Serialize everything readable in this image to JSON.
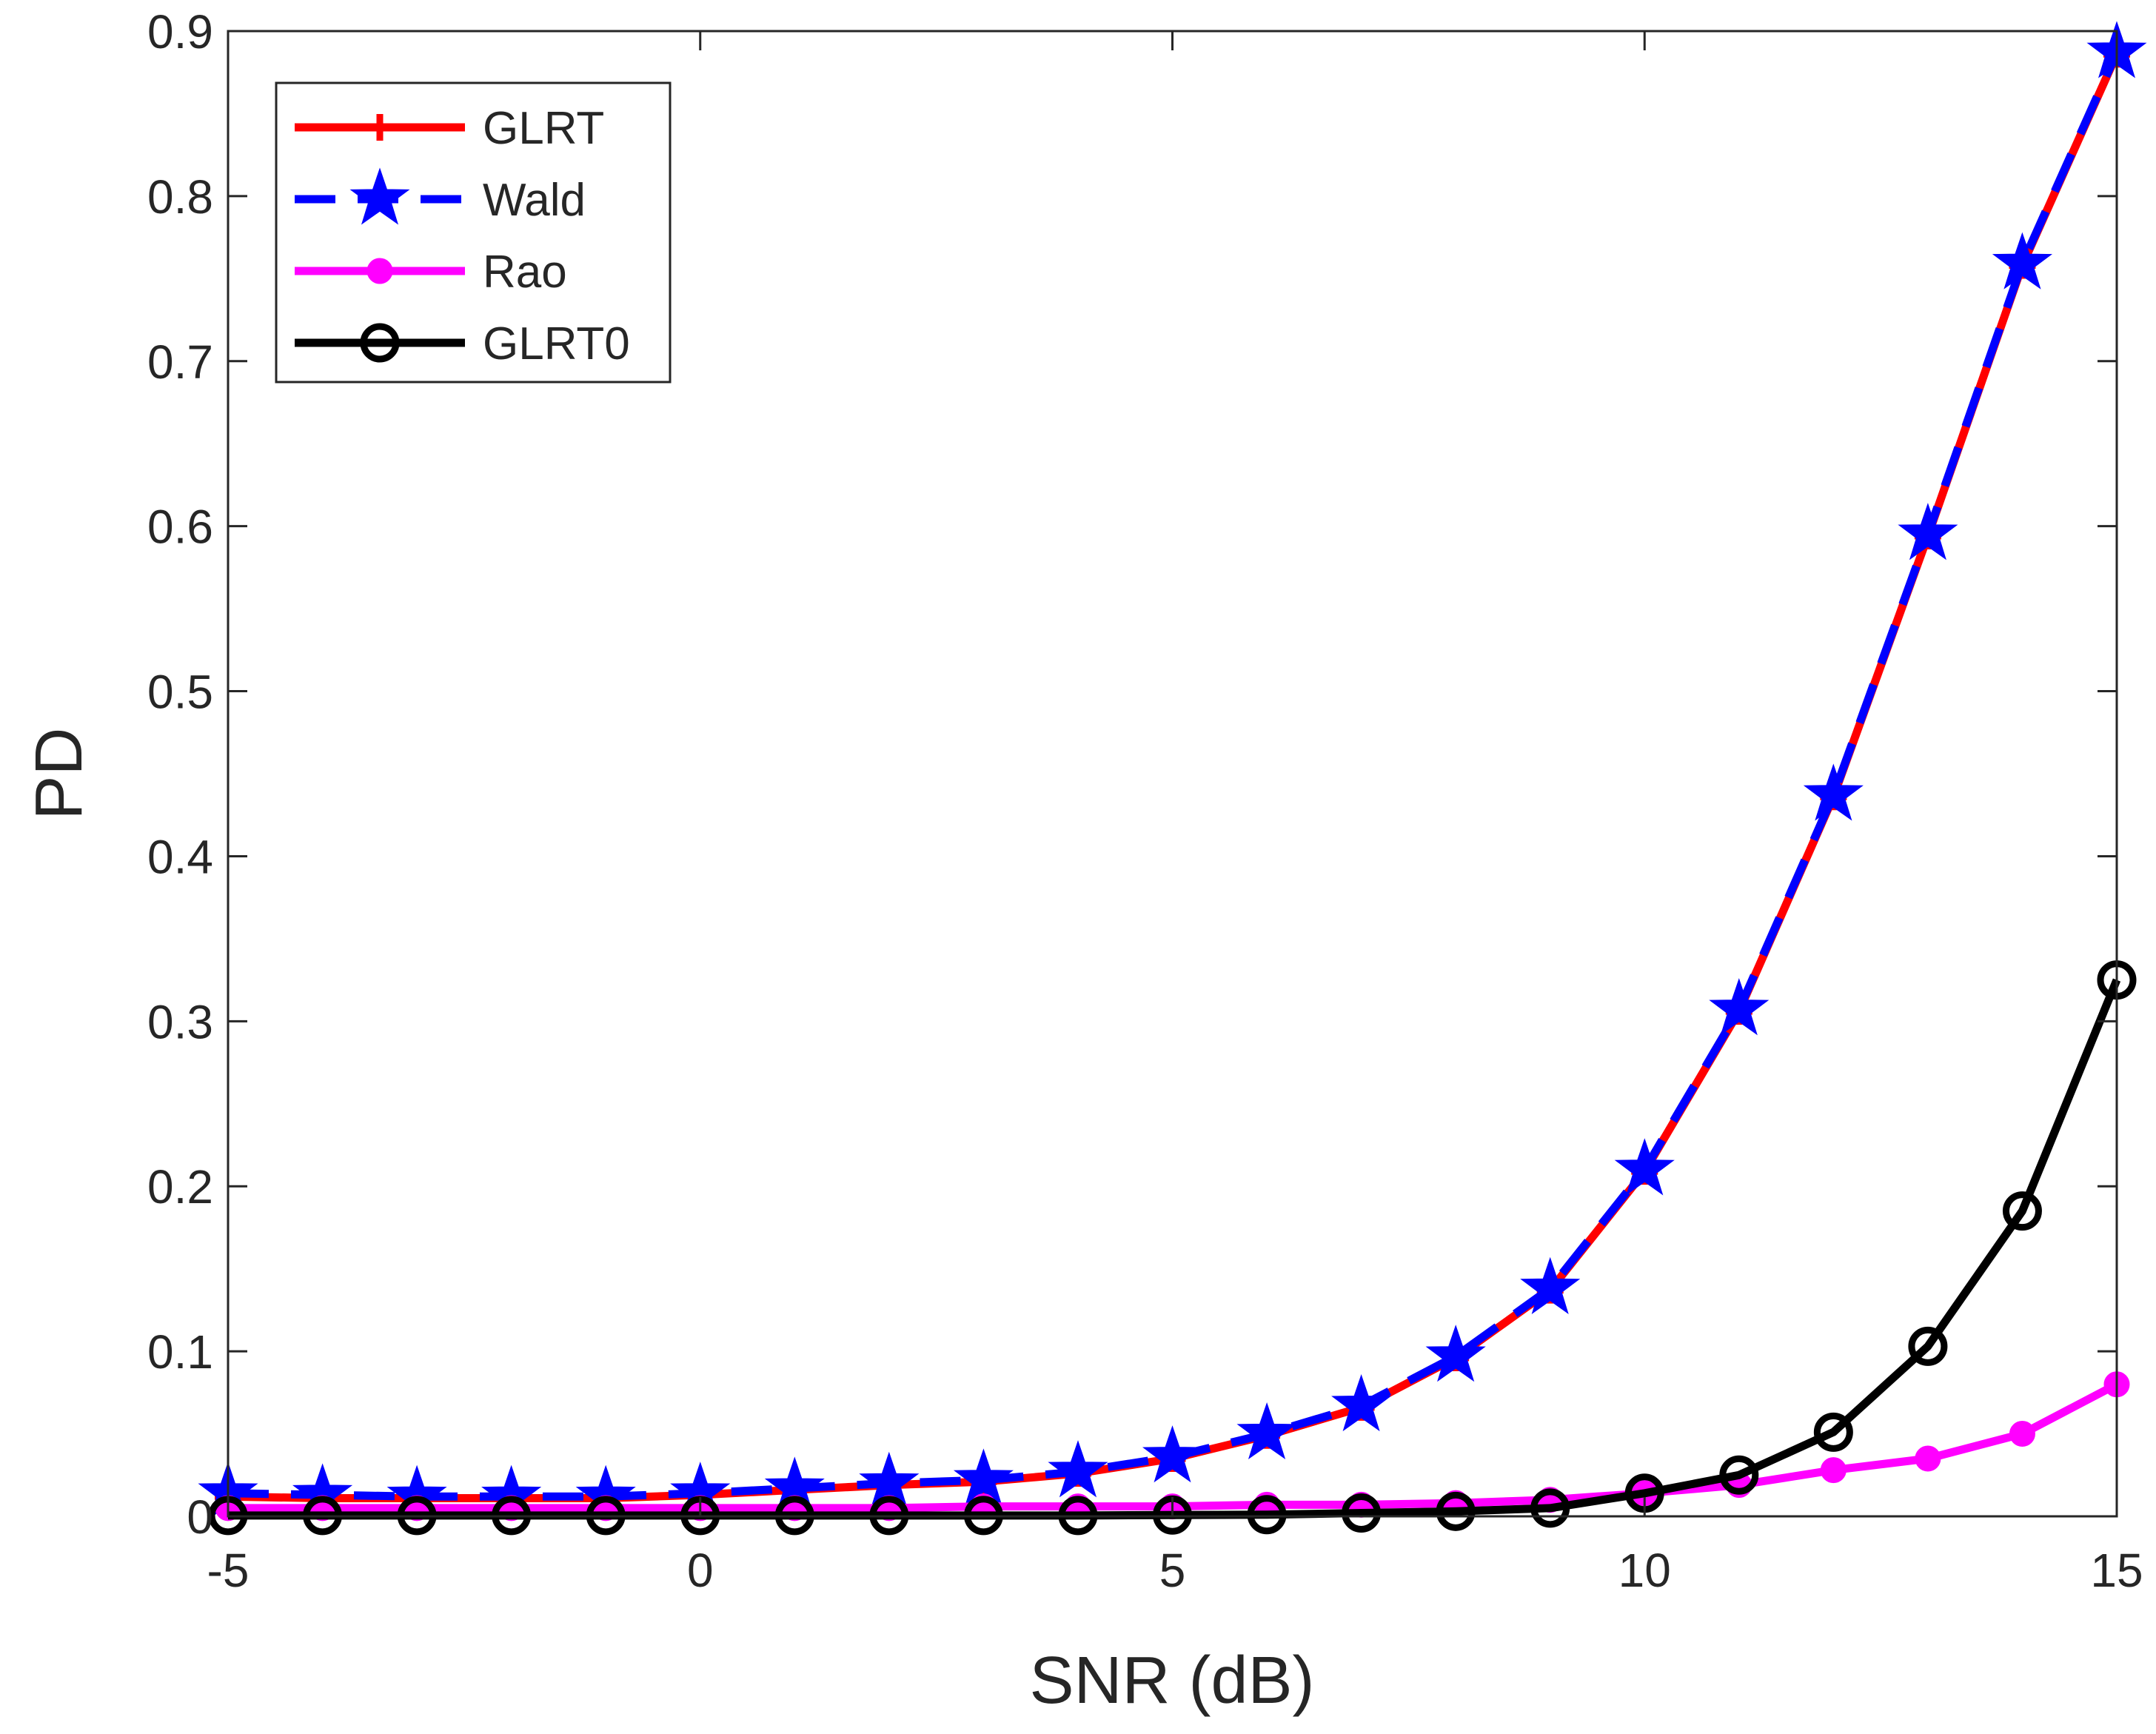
{
  "chart_data": {
    "type": "line",
    "title": "",
    "xlabel": "SNR (dB)",
    "ylabel": "PD",
    "xlim": [
      -5,
      15
    ],
    "ylim": [
      0,
      0.9
    ],
    "xticks": [
      -5,
      0,
      5,
      10,
      15
    ],
    "xtick_labels": [
      "-5",
      "0",
      "5",
      "10",
      "15"
    ],
    "yticks": [
      0,
      0.1,
      0.2,
      0.3,
      0.4,
      0.5,
      0.6,
      0.7,
      0.8,
      0.9
    ],
    "ytick_labels": [
      "0",
      "0.1",
      "0.2",
      "0.3",
      "0.4",
      "0.5",
      "0.6",
      "0.7",
      "0.8",
      "0.9"
    ],
    "grid": false,
    "legend_position": "top-left",
    "x": [
      -5,
      -4,
      -3,
      -2,
      -1,
      0,
      1,
      2,
      3,
      4,
      5,
      6,
      7,
      8,
      9,
      10,
      11,
      12,
      13,
      14,
      15
    ],
    "series": [
      {
        "name": "GLRT",
        "color": "#ff0000",
        "dash": "solid",
        "marker": "plus",
        "values": [
          0.012,
          0.011,
          0.011,
          0.011,
          0.011,
          0.013,
          0.016,
          0.019,
          0.021,
          0.026,
          0.035,
          0.049,
          0.066,
          0.096,
          0.137,
          0.209,
          0.306,
          0.436,
          0.594,
          0.758,
          0.886
        ]
      },
      {
        "name": "Wald",
        "color": "#0000ff",
        "dash": "dashed",
        "marker": "star",
        "values": [
          0.014,
          0.013,
          0.012,
          0.012,
          0.012,
          0.014,
          0.017,
          0.02,
          0.022,
          0.027,
          0.036,
          0.05,
          0.067,
          0.097,
          0.138,
          0.21,
          0.307,
          0.437,
          0.595,
          0.759,
          0.887
        ]
      },
      {
        "name": "Rao",
        "color": "#ff00ff",
        "dash": "solid",
        "marker": "dot",
        "values": [
          0.005,
          0.005,
          0.005,
          0.005,
          0.005,
          0.005,
          0.005,
          0.005,
          0.006,
          0.006,
          0.006,
          0.007,
          0.007,
          0.008,
          0.01,
          0.014,
          0.019,
          0.028,
          0.035,
          0.05,
          0.08
        ]
      },
      {
        "name": "GLRT0",
        "color": "#000000",
        "dash": "solid",
        "marker": "circle",
        "values": [
          0.0005,
          0.0005,
          0.0005,
          0.0005,
          0.0005,
          0.0005,
          0.0005,
          0.0005,
          0.0005,
          0.0005,
          0.0008,
          0.001,
          0.002,
          0.003,
          0.005,
          0.014,
          0.025,
          0.051,
          0.103,
          0.185,
          0.325
        ]
      }
    ]
  }
}
